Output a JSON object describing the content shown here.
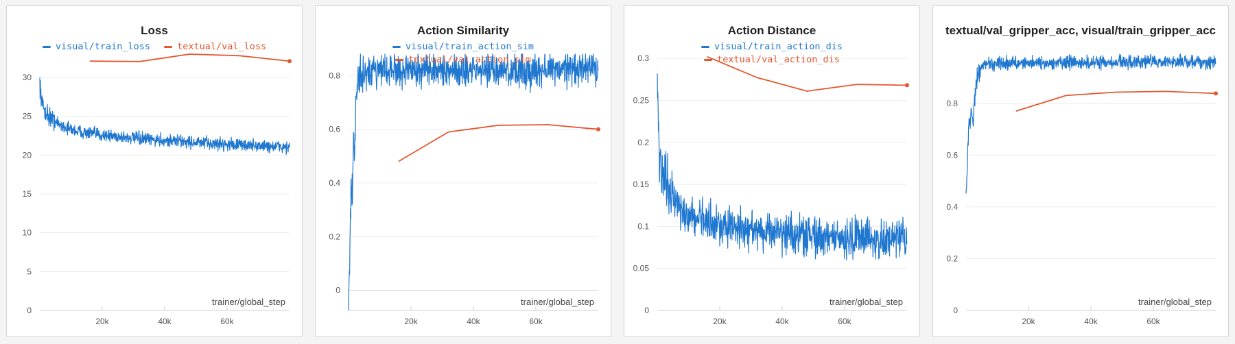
{
  "colors": {
    "train": "#1f77d0",
    "val": "#e4572e"
  },
  "chart_data": [
    {
      "type": "line",
      "title": "Loss",
      "xlabel": "trainer/global_step",
      "ylabel": "",
      "xlim": [
        0,
        80000
      ],
      "ylim": [
        0,
        33
      ],
      "yticks": [
        0,
        5,
        10,
        15,
        20,
        25,
        30
      ],
      "ytick_labels": [
        "0",
        "5",
        "10",
        "15",
        "20",
        "25",
        "30"
      ],
      "xticks": [
        20000,
        40000,
        60000
      ],
      "xtick_labels": [
        "20k",
        "40k",
        "60k"
      ],
      "legend_layout": "row",
      "series": [
        {
          "name": "visual/train_loss",
          "color": "#1f77d0",
          "style": "noisy",
          "x": [
            0,
            300,
            800,
            1500,
            2500,
            4000,
            6000,
            8000,
            10000,
            13000,
            16000,
            20000,
            25000,
            30000,
            35000,
            40000,
            45000,
            50000,
            55000,
            60000,
            65000,
            70000,
            75000,
            80000
          ],
          "y": [
            29.5,
            28,
            26.5,
            25.8,
            25.2,
            24.6,
            24,
            23.6,
            23.3,
            23,
            22.8,
            22.6,
            22.4,
            22.2,
            22,
            21.9,
            21.8,
            21.6,
            21.5,
            21.4,
            21.3,
            21.2,
            21.1,
            21
          ],
          "noise": 0.8
        },
        {
          "name": "textual/val_loss",
          "color": "#e4572e",
          "style": "line",
          "endpoint": true,
          "x": [
            16000,
            32000,
            48000,
            64000,
            80000
          ],
          "y": [
            32.1,
            32.05,
            33,
            32.8,
            32.1
          ]
        }
      ]
    },
    {
      "type": "line",
      "title": "Action Similarity",
      "xlabel": "trainer/global_step",
      "ylabel": "",
      "xlim": [
        0,
        80000
      ],
      "ylim": [
        -0.075,
        0.88
      ],
      "yticks": [
        0,
        0.2,
        0.4,
        0.6,
        0.8
      ],
      "ytick_labels": [
        "0",
        "0.2",
        "0.4",
        "0.6",
        "0.8"
      ],
      "xticks": [
        20000,
        40000,
        60000
      ],
      "xtick_labels": [
        "20k",
        "40k",
        "60k"
      ],
      "legend_layout": "column",
      "series": [
        {
          "name": "visual/train_action_sim",
          "color": "#1f77d0",
          "style": "noisy",
          "x": [
            0,
            200,
            400,
            600,
            800,
            1000,
            1300,
            1600,
            1900,
            2200,
            2600,
            3000,
            3500,
            4500,
            6000,
            10000,
            20000,
            30000,
            40000,
            50000,
            60000,
            70000,
            80000
          ],
          "y": [
            -0.05,
            0.05,
            0.1,
            0.3,
            0.45,
            0.35,
            0.4,
            0.55,
            0.5,
            0.6,
            0.75,
            0.8,
            0.8,
            0.8,
            0.81,
            0.815,
            0.82,
            0.82,
            0.82,
            0.82,
            0.82,
            0.825,
            0.83
          ],
          "noise": 0.06
        },
        {
          "name": "textual/val_action_sim",
          "color": "#e4572e",
          "style": "line",
          "endpoint": true,
          "x": [
            16000,
            32000,
            48000,
            64000,
            80000
          ],
          "y": [
            0.48,
            0.59,
            0.615,
            0.617,
            0.6
          ]
        }
      ]
    },
    {
      "type": "line",
      "title": "Action Distance",
      "xlabel": "trainer/global_step",
      "ylabel": "",
      "xlim": [
        0,
        80000
      ],
      "ylim": [
        0,
        0.305
      ],
      "yticks": [
        0,
        0.05,
        0.1,
        0.15,
        0.2,
        0.25,
        0.3
      ],
      "ytick_labels": [
        "0",
        "0.05",
        "0.1",
        "0.15",
        "0.2",
        "0.25",
        "0.3"
      ],
      "xticks": [
        20000,
        40000,
        60000
      ],
      "xtick_labels": [
        "20k",
        "40k",
        "60k"
      ],
      "legend_layout": "column",
      "series": [
        {
          "name": "visual/train_action_dis",
          "color": "#1f77d0",
          "style": "noisy",
          "x": [
            0,
            200,
            500,
            1000,
            1500,
            2500,
            4000,
            6000,
            8000,
            10000,
            13000,
            16000,
            20000,
            25000,
            30000,
            35000,
            40000,
            45000,
            50000,
            55000,
            60000,
            65000,
            70000,
            75000,
            80000
          ],
          "y": [
            0.3,
            0.24,
            0.2,
            0.18,
            0.165,
            0.15,
            0.138,
            0.128,
            0.12,
            0.115,
            0.11,
            0.106,
            0.102,
            0.099,
            0.096,
            0.094,
            0.092,
            0.09,
            0.089,
            0.088,
            0.087,
            0.086,
            0.085,
            0.085,
            0.084
          ],
          "noise": 0.022
        },
        {
          "name": "textual/val_action_dis",
          "color": "#e4572e",
          "style": "line",
          "endpoint": true,
          "x": [
            16000,
            32000,
            48000,
            64000,
            80000
          ],
          "y": [
            0.302,
            0.277,
            0.261,
            0.269,
            0.268
          ]
        }
      ]
    },
    {
      "type": "line",
      "title": "textual/val_gripper_acc, visual/train_gripper_acc",
      "xlabel": "trainer/global_step",
      "ylabel": "",
      "xlim": [
        0,
        80000
      ],
      "ylim": [
        0,
        0.99
      ],
      "yticks": [
        0,
        0.2,
        0.4,
        0.6,
        0.8
      ],
      "ytick_labels": [
        "0",
        "0.2",
        "0.4",
        "0.6",
        "0.8"
      ],
      "xticks": [
        20000,
        40000,
        60000
      ],
      "xtick_labels": [
        "20k",
        "40k",
        "60k"
      ],
      "legend_layout": "none",
      "series": [
        {
          "name": "visual/train_gripper_acc",
          "color": "#1f77d0",
          "style": "noisy",
          "x": [
            0,
            300,
            600,
            1000,
            1400,
            1800,
            2200,
            2600,
            3000,
            3500,
            4000,
            5000,
            7000,
            10000,
            20000,
            30000,
            40000,
            50000,
            60000,
            70000,
            80000
          ],
          "y": [
            0.47,
            0.5,
            0.65,
            0.75,
            0.72,
            0.78,
            0.7,
            0.8,
            0.85,
            0.9,
            0.93,
            0.94,
            0.95,
            0.955,
            0.955,
            0.955,
            0.955,
            0.96,
            0.96,
            0.96,
            0.96
          ],
          "noise": 0.025
        },
        {
          "name": "textual/val_gripper_acc",
          "color": "#e4572e",
          "style": "line",
          "endpoint": true,
          "x": [
            16000,
            32000,
            48000,
            64000,
            80000
          ],
          "y": [
            0.77,
            0.83,
            0.843,
            0.846,
            0.838
          ]
        }
      ]
    }
  ]
}
